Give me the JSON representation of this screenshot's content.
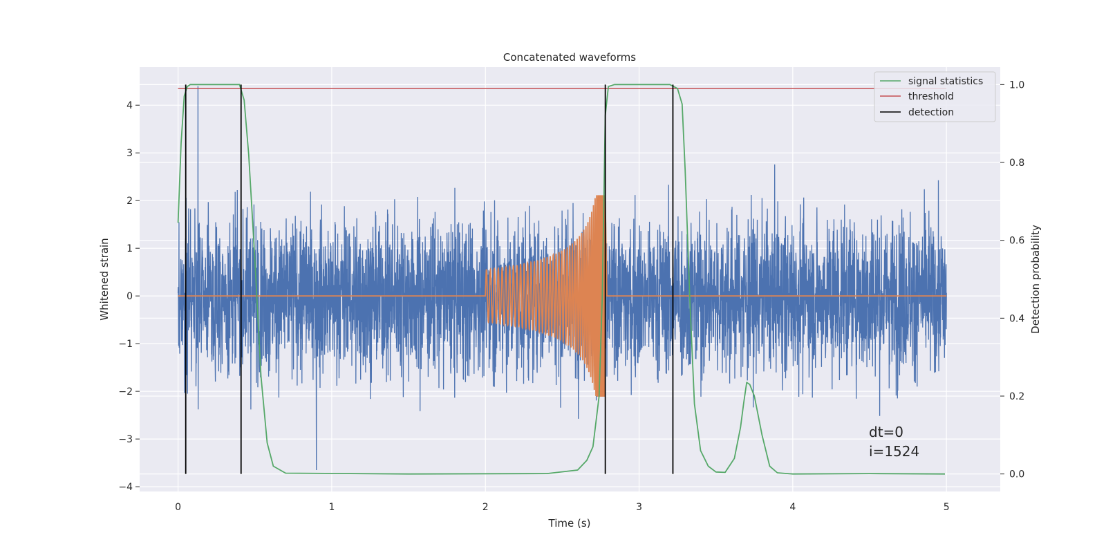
{
  "chart_data": {
    "type": "line",
    "title": "Concatenated waveforms",
    "xlabel": "Time (s)",
    "ylabel_left": "Whitened strain",
    "ylabel_right": "Detection probability",
    "xlim": [
      -0.25,
      5.35
    ],
    "ylim_left": [
      -4.1,
      4.8
    ],
    "ylim_right": [
      -0.045,
      1.045
    ],
    "x_ticks": [
      "0",
      "1",
      "2",
      "3",
      "4",
      "5"
    ],
    "y_ticks_left": [
      "−4",
      "−3",
      "−2",
      "−1",
      "0",
      "1",
      "2",
      "3",
      "4"
    ],
    "y_ticks_right": [
      "0.0",
      "0.2",
      "0.4",
      "0.6",
      "0.8",
      "1.0"
    ],
    "grid": true,
    "legend_position": "top-right",
    "legend": [
      {
        "label": "signal statistics",
        "color": "#55a868"
      },
      {
        "label": "threshold",
        "color": "#c44e52"
      },
      {
        "label": "detection",
        "color": "#000000"
      }
    ],
    "series": [
      {
        "name": "whitened strain",
        "axis": "left",
        "color": "#4c72b0",
        "x_range": [
          0,
          5
        ],
        "typical_amplitude": 1.2,
        "max_value": 4.4,
        "min_value": -3.65
      },
      {
        "name": "chirp",
        "axis": "left",
        "color": "#dd8452",
        "x_start": 2.0,
        "x_end": 2.78,
        "peak_amplitude": 2.1
      },
      {
        "name": "signal statistics",
        "axis": "right",
        "color": "#55a868",
        "x": [
          0.0,
          0.02,
          0.04,
          0.06,
          0.08,
          0.1,
          0.4,
          0.43,
          0.46,
          0.5,
          0.54,
          0.58,
          0.62,
          0.7,
          1.5,
          2.4,
          2.6,
          2.66,
          2.7,
          2.74,
          2.76,
          2.78,
          2.8,
          2.84,
          3.0,
          3.2,
          3.25,
          3.28,
          3.3,
          3.33,
          3.36,
          3.4,
          3.45,
          3.5,
          3.56,
          3.62,
          3.66,
          3.68,
          3.7,
          3.72,
          3.75,
          3.8,
          3.85,
          3.9,
          4.0,
          4.5,
          4.99
        ],
        "y": [
          0.645,
          0.85,
          0.97,
          0.995,
          1.0,
          1.0,
          1.0,
          0.96,
          0.82,
          0.55,
          0.25,
          0.08,
          0.02,
          0.002,
          0.0,
          0.001,
          0.01,
          0.035,
          0.07,
          0.2,
          0.45,
          0.92,
          0.995,
          1.0,
          1.0,
          1.0,
          0.99,
          0.95,
          0.78,
          0.45,
          0.18,
          0.06,
          0.02,
          0.005,
          0.004,
          0.04,
          0.12,
          0.18,
          0.235,
          0.23,
          0.2,
          0.1,
          0.02,
          0.003,
          0.0,
          0.001,
          0.0
        ]
      },
      {
        "name": "threshold",
        "axis": "right",
        "color": "#c44e52",
        "x": [
          0,
          5
        ],
        "y": [
          0.99,
          0.99
        ]
      }
    ],
    "detections": [
      0.05,
      0.41,
      2.78,
      3.22
    ],
    "annotations": [
      "dt=0",
      "i=1524"
    ]
  }
}
